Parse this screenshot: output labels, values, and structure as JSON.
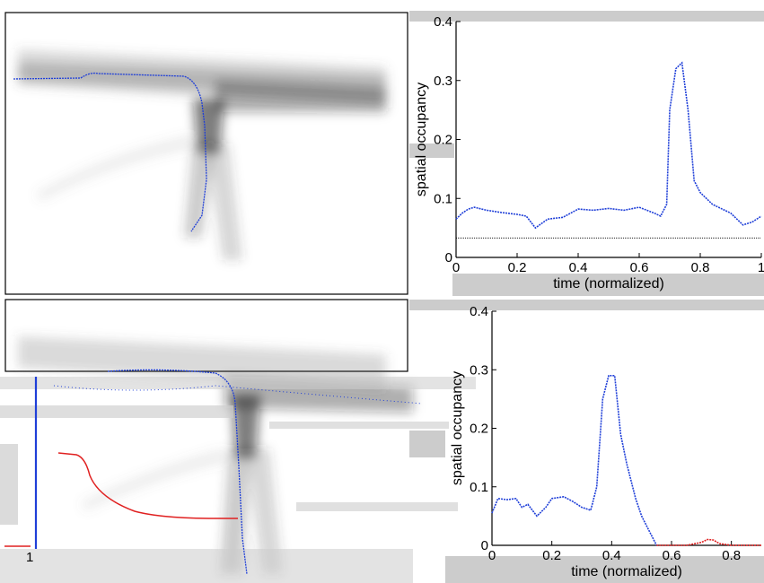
{
  "chart_data": [
    {
      "type": "line",
      "panel": "top",
      "xlabel": "time (normalized)",
      "ylabel": "spatial occupancy",
      "xlim": [
        0,
        1
      ],
      "ylim": [
        0,
        0.4
      ],
      "x_ticks": [
        "0",
        "0.2",
        "0.4",
        "0.6",
        "0.8",
        "1"
      ],
      "y_ticks": [
        "0",
        "0.1",
        "0.2",
        "0.3",
        "0.4"
      ],
      "reference_line": 0.033,
      "grid": false,
      "series": [
        {
          "color": "#1f3fd8",
          "x": [
            0,
            0.02,
            0.04,
            0.06,
            0.1,
            0.15,
            0.2,
            0.23,
            0.26,
            0.3,
            0.35,
            0.4,
            0.45,
            0.5,
            0.55,
            0.6,
            0.65,
            0.67,
            0.69,
            0.7,
            0.72,
            0.74,
            0.76,
            0.78,
            0.8,
            0.84,
            0.88,
            0.9,
            0.94,
            0.97,
            1.0
          ],
          "y": [
            0.065,
            0.075,
            0.082,
            0.085,
            0.08,
            0.076,
            0.073,
            0.07,
            0.05,
            0.065,
            0.068,
            0.082,
            0.08,
            0.083,
            0.08,
            0.085,
            0.075,
            0.07,
            0.09,
            0.25,
            0.32,
            0.33,
            0.25,
            0.13,
            0.11,
            0.09,
            0.08,
            0.075,
            0.055,
            0.06,
            0.07
          ]
        }
      ]
    },
    {
      "type": "line",
      "panel": "bottom",
      "xlabel": "time (normalized)",
      "ylabel": "spatial occupancy",
      "xlim": [
        0,
        0.9
      ],
      "ylim": [
        0,
        0.4
      ],
      "x_ticks": [
        "0",
        "0.2",
        "0.4",
        "0.6",
        "0.8"
      ],
      "y_ticks": [
        "0",
        "0.1",
        "0.2",
        "0.3",
        "0.4"
      ],
      "grid": false,
      "series": [
        {
          "color": "#1f3fd8",
          "x": [
            0,
            0.02,
            0.05,
            0.08,
            0.1,
            0.12,
            0.15,
            0.18,
            0.2,
            0.24,
            0.27,
            0.3,
            0.33,
            0.35,
            0.37,
            0.39,
            0.41,
            0.43,
            0.45,
            0.48,
            0.5,
            0.52,
            0.54,
            0.55
          ],
          "y": [
            0.055,
            0.08,
            0.078,
            0.08,
            0.065,
            0.07,
            0.05,
            0.065,
            0.08,
            0.083,
            0.075,
            0.065,
            0.06,
            0.1,
            0.25,
            0.29,
            0.29,
            0.19,
            0.14,
            0.08,
            0.05,
            0.03,
            0.01,
            0.0
          ]
        },
        {
          "color": "#e02020",
          "x": [
            0.55,
            0.6,
            0.65,
            0.7,
            0.72,
            0.74,
            0.76,
            0.8,
            0.85,
            0.9
          ],
          "y": [
            0.0,
            0.0,
            0.0,
            0.005,
            0.01,
            0.009,
            0.003,
            0.0,
            0.0,
            0.0
          ]
        }
      ]
    }
  ],
  "colors": {
    "blue_path": "#1f3fd8",
    "red_path": "#e02020",
    "grey_band": "#cccccc"
  }
}
